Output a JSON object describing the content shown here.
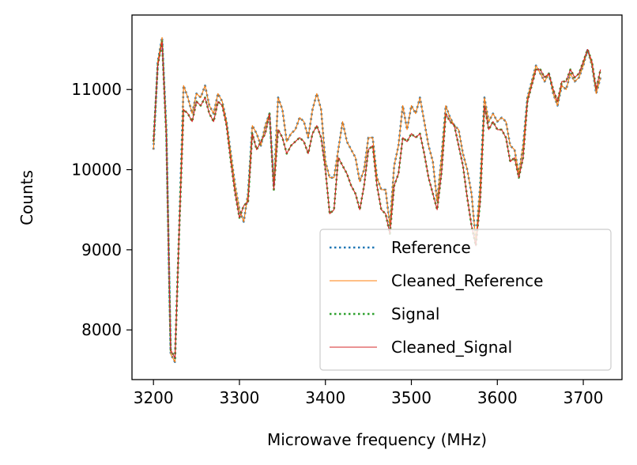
{
  "chart_data": {
    "type": "line",
    "title": "",
    "xlabel": "Microwave frequency (MHz)",
    "ylabel": "Counts",
    "xlim": [
      3175,
      3745
    ],
    "ylim": [
      7380,
      11930
    ],
    "xticks": [
      3200,
      3300,
      3400,
      3500,
      3600,
      3700
    ],
    "yticks": [
      8000,
      9000,
      10000,
      11000
    ],
    "grid": false,
    "legend_position": "lower-right",
    "x": [
      3200,
      3205,
      3210,
      3215,
      3220,
      3225,
      3230,
      3235,
      3240,
      3245,
      3250,
      3255,
      3260,
      3265,
      3270,
      3275,
      3280,
      3285,
      3290,
      3295,
      3300,
      3305,
      3310,
      3315,
      3320,
      3325,
      3330,
      3335,
      3340,
      3345,
      3350,
      3355,
      3360,
      3365,
      3370,
      3375,
      3380,
      3385,
      3390,
      3395,
      3400,
      3405,
      3410,
      3415,
      3420,
      3425,
      3430,
      3435,
      3440,
      3445,
      3450,
      3455,
      3460,
      3465,
      3470,
      3475,
      3480,
      3485,
      3490,
      3495,
      3500,
      3505,
      3510,
      3515,
      3520,
      3525,
      3530,
      3535,
      3540,
      3545,
      3550,
      3555,
      3560,
      3565,
      3570,
      3575,
      3580,
      3585,
      3590,
      3595,
      3600,
      3605,
      3610,
      3615,
      3620,
      3625,
      3630,
      3635,
      3640,
      3645,
      3650,
      3655,
      3660,
      3665,
      3670,
      3675,
      3680,
      3685,
      3690,
      3695,
      3700,
      3705,
      3710,
      3715,
      3720
    ],
    "series": [
      {
        "name": "Reference",
        "color": "#1f77b4",
        "style": "dotted",
        "values": [
          10250,
          11350,
          11650,
          10500,
          7700,
          7600,
          9300,
          11050,
          10900,
          10700,
          10950,
          10900,
          11050,
          10800,
          10700,
          10950,
          10850,
          10600,
          10200,
          9800,
          9500,
          9350,
          9700,
          10550,
          10450,
          10300,
          10550,
          10700,
          9800,
          10900,
          10750,
          10350,
          10450,
          10500,
          10650,
          10600,
          10400,
          10750,
          10950,
          10750,
          10100,
          9900,
          9900,
          10250,
          10600,
          10350,
          10250,
          10150,
          9850,
          10000,
          10400,
          10400,
          9900,
          9750,
          9750,
          9300,
          10050,
          10300,
          10800,
          10500,
          10800,
          10700,
          10900,
          10600,
          10300,
          10100,
          9600,
          10150,
          10800,
          10650,
          10550,
          10500,
          10200,
          10000,
          9700,
          9100,
          9800,
          10900,
          10600,
          10700,
          10600,
          10650,
          10600,
          10300,
          10250,
          9950,
          10300,
          10900,
          11100,
          11300,
          11200,
          11100,
          11200,
          10950,
          10800,
          11050,
          11000,
          11200,
          11100,
          11150,
          11300,
          11500,
          11300,
          10950,
          11150
        ]
      },
      {
        "name": "Cleaned_Reference",
        "color": "#ff7f0e",
        "style": "solid",
        "values": [
          10250,
          11350,
          11650,
          10500,
          7700,
          7600,
          9300,
          11050,
          10900,
          10700,
          10950,
          10900,
          11050,
          10800,
          10700,
          10950,
          10850,
          10600,
          10200,
          9800,
          9500,
          9350,
          9700,
          10550,
          10450,
          10300,
          10550,
          10700,
          9800,
          10900,
          10750,
          10350,
          10450,
          10500,
          10650,
          10600,
          10400,
          10750,
          10950,
          10750,
          10100,
          9900,
          9900,
          10250,
          10600,
          10350,
          10250,
          10150,
          9850,
          10000,
          10400,
          10400,
          9900,
          9750,
          9750,
          9300,
          10050,
          10300,
          10800,
          10500,
          10800,
          10700,
          10900,
          10600,
          10300,
          10100,
          9600,
          10150,
          10800,
          10650,
          10550,
          10500,
          10200,
          10000,
          9700,
          9100,
          9800,
          10900,
          10600,
          10700,
          10600,
          10650,
          10600,
          10300,
          10250,
          9950,
          10300,
          10900,
          11100,
          11300,
          11200,
          11100,
          11200,
          10950,
          10800,
          11050,
          11000,
          11200,
          11100,
          11150,
          11300,
          11500,
          11300,
          10950,
          11150
        ]
      },
      {
        "name": "Signal",
        "color": "#2ca02c",
        "style": "dotted",
        "values": [
          10350,
          11300,
          11600,
          10400,
          7750,
          7650,
          9250,
          10750,
          10700,
          10600,
          10850,
          10800,
          10900,
          10700,
          10600,
          10850,
          10800,
          10550,
          10100,
          9700,
          9400,
          9550,
          9600,
          10450,
          10250,
          10350,
          10450,
          10700,
          9750,
          10500,
          10400,
          10200,
          10300,
          10350,
          10400,
          10350,
          10200,
          10450,
          10550,
          10400,
          10000,
          9450,
          9500,
          10150,
          10050,
          9950,
          9800,
          9700,
          9500,
          9800,
          10250,
          10300,
          9800,
          9500,
          9450,
          9200,
          9800,
          9950,
          10400,
          10350,
          10450,
          10400,
          10450,
          10200,
          9900,
          9700,
          9500,
          9950,
          10700,
          10600,
          10550,
          10300,
          10050,
          9650,
          9300,
          9050,
          9600,
          10800,
          10500,
          10600,
          10500,
          10500,
          10400,
          10100,
          10150,
          9900,
          10150,
          10850,
          11050,
          11250,
          11250,
          11150,
          11200,
          11000,
          10850,
          11100,
          11100,
          11250,
          11150,
          11200,
          11350,
          11500,
          11350,
          11000,
          11250
        ]
      },
      {
        "name": "Cleaned_Signal",
        "color": "#d62728",
        "style": "solid",
        "values": [
          10350,
          11300,
          11600,
          10400,
          7750,
          7650,
          9250,
          10750,
          10700,
          10600,
          10850,
          10800,
          10900,
          10700,
          10600,
          10850,
          10800,
          10550,
          10100,
          9700,
          9400,
          9550,
          9600,
          10450,
          10250,
          10350,
          10450,
          10700,
          9750,
          10500,
          10400,
          10200,
          10300,
          10350,
          10400,
          10350,
          10200,
          10450,
          10550,
          10400,
          10000,
          9450,
          9500,
          10150,
          10050,
          9950,
          9800,
          9700,
          9500,
          9800,
          10250,
          10300,
          9800,
          9500,
          9450,
          9200,
          9800,
          9950,
          10400,
          10350,
          10450,
          10400,
          10450,
          10200,
          9900,
          9700,
          9500,
          9950,
          10700,
          10600,
          10550,
          10300,
          10050,
          9650,
          9300,
          9050,
          9600,
          10800,
          10500,
          10600,
          10500,
          10500,
          10400,
          10100,
          10150,
          9900,
          10150,
          10850,
          11050,
          11250,
          11250,
          11150,
          11200,
          11000,
          10850,
          11100,
          11100,
          11250,
          11150,
          11200,
          11350,
          11500,
          11350,
          11000,
          11250
        ]
      }
    ]
  }
}
